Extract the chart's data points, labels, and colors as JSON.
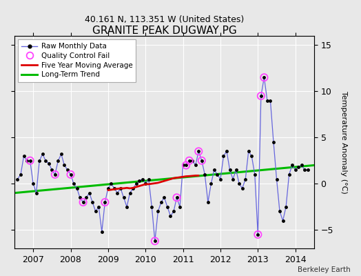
{
  "title": "GRANITE PEAK DUGWAY PG",
  "subtitle": "40.161 N, 113.351 W (United States)",
  "ylabel": "Temperature Anomaly (°C)",
  "credit": "Berkeley Earth",
  "background_color": "#e8e8e8",
  "plot_bg_color": "#e8e8e8",
  "ylim": [
    -7,
    16
  ],
  "yticks": [
    -5,
    0,
    5,
    10,
    15
  ],
  "xlim": [
    2006.5,
    2014.5
  ],
  "xticks": [
    2007,
    2008,
    2009,
    2010,
    2011,
    2012,
    2013,
    2014
  ],
  "raw_x": [
    2006.583,
    2006.667,
    2006.75,
    2006.833,
    2006.917,
    2007.0,
    2007.083,
    2007.167,
    2007.25,
    2007.333,
    2007.417,
    2007.5,
    2007.583,
    2007.667,
    2007.75,
    2007.833,
    2007.917,
    2008.0,
    2008.083,
    2008.167,
    2008.25,
    2008.333,
    2008.417,
    2008.5,
    2008.583,
    2008.667,
    2008.75,
    2008.833,
    2008.917,
    2009.0,
    2009.083,
    2009.167,
    2009.25,
    2009.333,
    2009.417,
    2009.5,
    2009.583,
    2009.667,
    2009.75,
    2009.833,
    2009.917,
    2010.0,
    2010.083,
    2010.167,
    2010.25,
    2010.333,
    2010.417,
    2010.5,
    2010.583,
    2010.667,
    2010.75,
    2010.833,
    2010.917,
    2011.0,
    2011.083,
    2011.167,
    2011.25,
    2011.333,
    2011.417,
    2011.5,
    2011.583,
    2011.667,
    2011.75,
    2011.833,
    2011.917,
    2012.0,
    2012.083,
    2012.167,
    2012.25,
    2012.333,
    2012.417,
    2012.5,
    2012.583,
    2012.667,
    2012.75,
    2012.833,
    2012.917,
    2013.0,
    2013.083,
    2013.167,
    2013.25,
    2013.333,
    2013.417,
    2013.5,
    2013.583,
    2013.667,
    2013.75,
    2013.833,
    2013.917,
    2014.0,
    2014.083,
    2014.167,
    2014.25,
    2014.333
  ],
  "raw_y": [
    0.5,
    1.0,
    3.0,
    2.5,
    2.5,
    0.0,
    -1.0,
    2.5,
    3.2,
    2.5,
    2.2,
    1.5,
    1.0,
    2.5,
    3.2,
    2.0,
    1.5,
    1.0,
    0.0,
    -0.5,
    -1.5,
    -2.0,
    -1.5,
    -1.0,
    -2.0,
    -3.0,
    -2.5,
    -5.2,
    -2.0,
    -0.5,
    0.0,
    -0.5,
    -1.0,
    -0.5,
    -1.5,
    -2.5,
    -1.0,
    -0.5,
    0.0,
    0.3,
    0.5,
    0.0,
    0.5,
    -2.5,
    -6.2,
    -3.0,
    -2.0,
    -1.5,
    -2.5,
    -3.5,
    -3.0,
    -1.5,
    -2.5,
    2.0,
    2.0,
    2.5,
    2.5,
    2.0,
    3.5,
    2.5,
    1.0,
    -2.0,
    0.0,
    1.5,
    1.0,
    0.5,
    3.0,
    3.5,
    1.5,
    0.5,
    1.5,
    0.0,
    -0.5,
    0.5,
    3.5,
    3.0,
    1.0,
    -5.5,
    9.5,
    11.5,
    9.0,
    9.0,
    4.5,
    0.5,
    -3.0,
    -4.0,
    -2.5,
    1.0,
    2.0,
    1.5,
    1.8,
    2.0,
    1.5,
    1.5
  ],
  "qc_fail_x": [
    2006.917,
    2007.583,
    2008.0,
    2008.333,
    2008.917,
    2010.25,
    2010.833,
    2011.083,
    2011.167,
    2011.417,
    2011.5,
    2013.0,
    2013.083,
    2013.167
  ],
  "qc_fail_y": [
    2.5,
    1.0,
    1.0,
    -2.0,
    -2.0,
    -6.2,
    -1.5,
    2.0,
    2.5,
    3.5,
    2.5,
    -5.5,
    9.5,
    11.5
  ],
  "moving_avg_x": [
    2009.0,
    2009.083,
    2009.167,
    2009.25,
    2009.333,
    2009.417,
    2009.5,
    2009.583,
    2009.667,
    2009.75,
    2009.833,
    2009.917,
    2010.0,
    2010.083,
    2010.167,
    2010.25,
    2010.333,
    2010.417,
    2010.5,
    2010.583,
    2010.667,
    2010.75,
    2010.833,
    2010.917,
    2011.0,
    2011.083,
    2011.167,
    2011.25,
    2011.333,
    2011.417
  ],
  "moving_avg_y": [
    -0.7,
    -0.65,
    -0.6,
    -0.55,
    -0.5,
    -0.5,
    -0.45,
    -0.5,
    -0.45,
    -0.35,
    -0.25,
    -0.15,
    -0.05,
    -0.05,
    0.0,
    0.05,
    0.1,
    0.2,
    0.3,
    0.4,
    0.5,
    0.6,
    0.65,
    0.7,
    0.75,
    0.8,
    0.82,
    0.85,
    0.88,
    0.88
  ],
  "trend_x": [
    2006.5,
    2014.5
  ],
  "trend_y": [
    -1.0,
    2.0
  ],
  "line_color": "#6666dd",
  "marker_color": "#000000",
  "qc_color": "#ff44ff",
  "moving_avg_color": "#dd0000",
  "trend_color": "#00bb00",
  "grid_color": "#ffffff",
  "title_fontsize": 11,
  "subtitle_fontsize": 9,
  "tick_fontsize": 9,
  "ylabel_fontsize": 8
}
